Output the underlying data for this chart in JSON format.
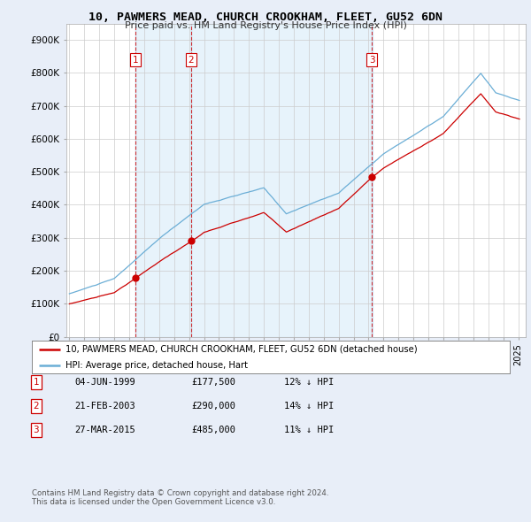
{
  "title": "10, PAWMERS MEAD, CHURCH CROOKHAM, FLEET, GU52 6DN",
  "subtitle": "Price paid vs. HM Land Registry's House Price Index (HPI)",
  "ylabel_ticks": [
    "£0",
    "£100K",
    "£200K",
    "£300K",
    "£400K",
    "£500K",
    "£600K",
    "£700K",
    "£800K",
    "£900K"
  ],
  "ytick_values": [
    0,
    100000,
    200000,
    300000,
    400000,
    500000,
    600000,
    700000,
    800000,
    900000
  ],
  "ylim": [
    0,
    950000
  ],
  "xlim_start": 1994.8,
  "xlim_end": 2025.5,
  "sale1_date": 1999.42,
  "sale1_price": 177500,
  "sale2_date": 2003.13,
  "sale2_price": 290000,
  "sale3_date": 2015.23,
  "sale3_price": 485000,
  "hpi_color": "#6baed6",
  "hpi_fill_color": "#d0e8f8",
  "sale_color": "#cc0000",
  "vline_color": "#cc0000",
  "legend_house_label": "10, PAWMERS MEAD, CHURCH CROOKHAM, FLEET, GU52 6DN (detached house)",
  "legend_hpi_label": "HPI: Average price, detached house, Hart",
  "table_rows": [
    [
      "1",
      "04-JUN-1999",
      "£177,500",
      "12% ↓ HPI"
    ],
    [
      "2",
      "21-FEB-2003",
      "£290,000",
      "14% ↓ HPI"
    ],
    [
      "3",
      "27-MAR-2015",
      "£485,000",
      "11% ↓ HPI"
    ]
  ],
  "footnote1": "Contains HM Land Registry data © Crown copyright and database right 2024.",
  "footnote2": "This data is licensed under the Open Government Licence v3.0.",
  "background_color": "#e8eef8",
  "plot_bg_color": "#ffffff",
  "grid_color": "#cccccc"
}
